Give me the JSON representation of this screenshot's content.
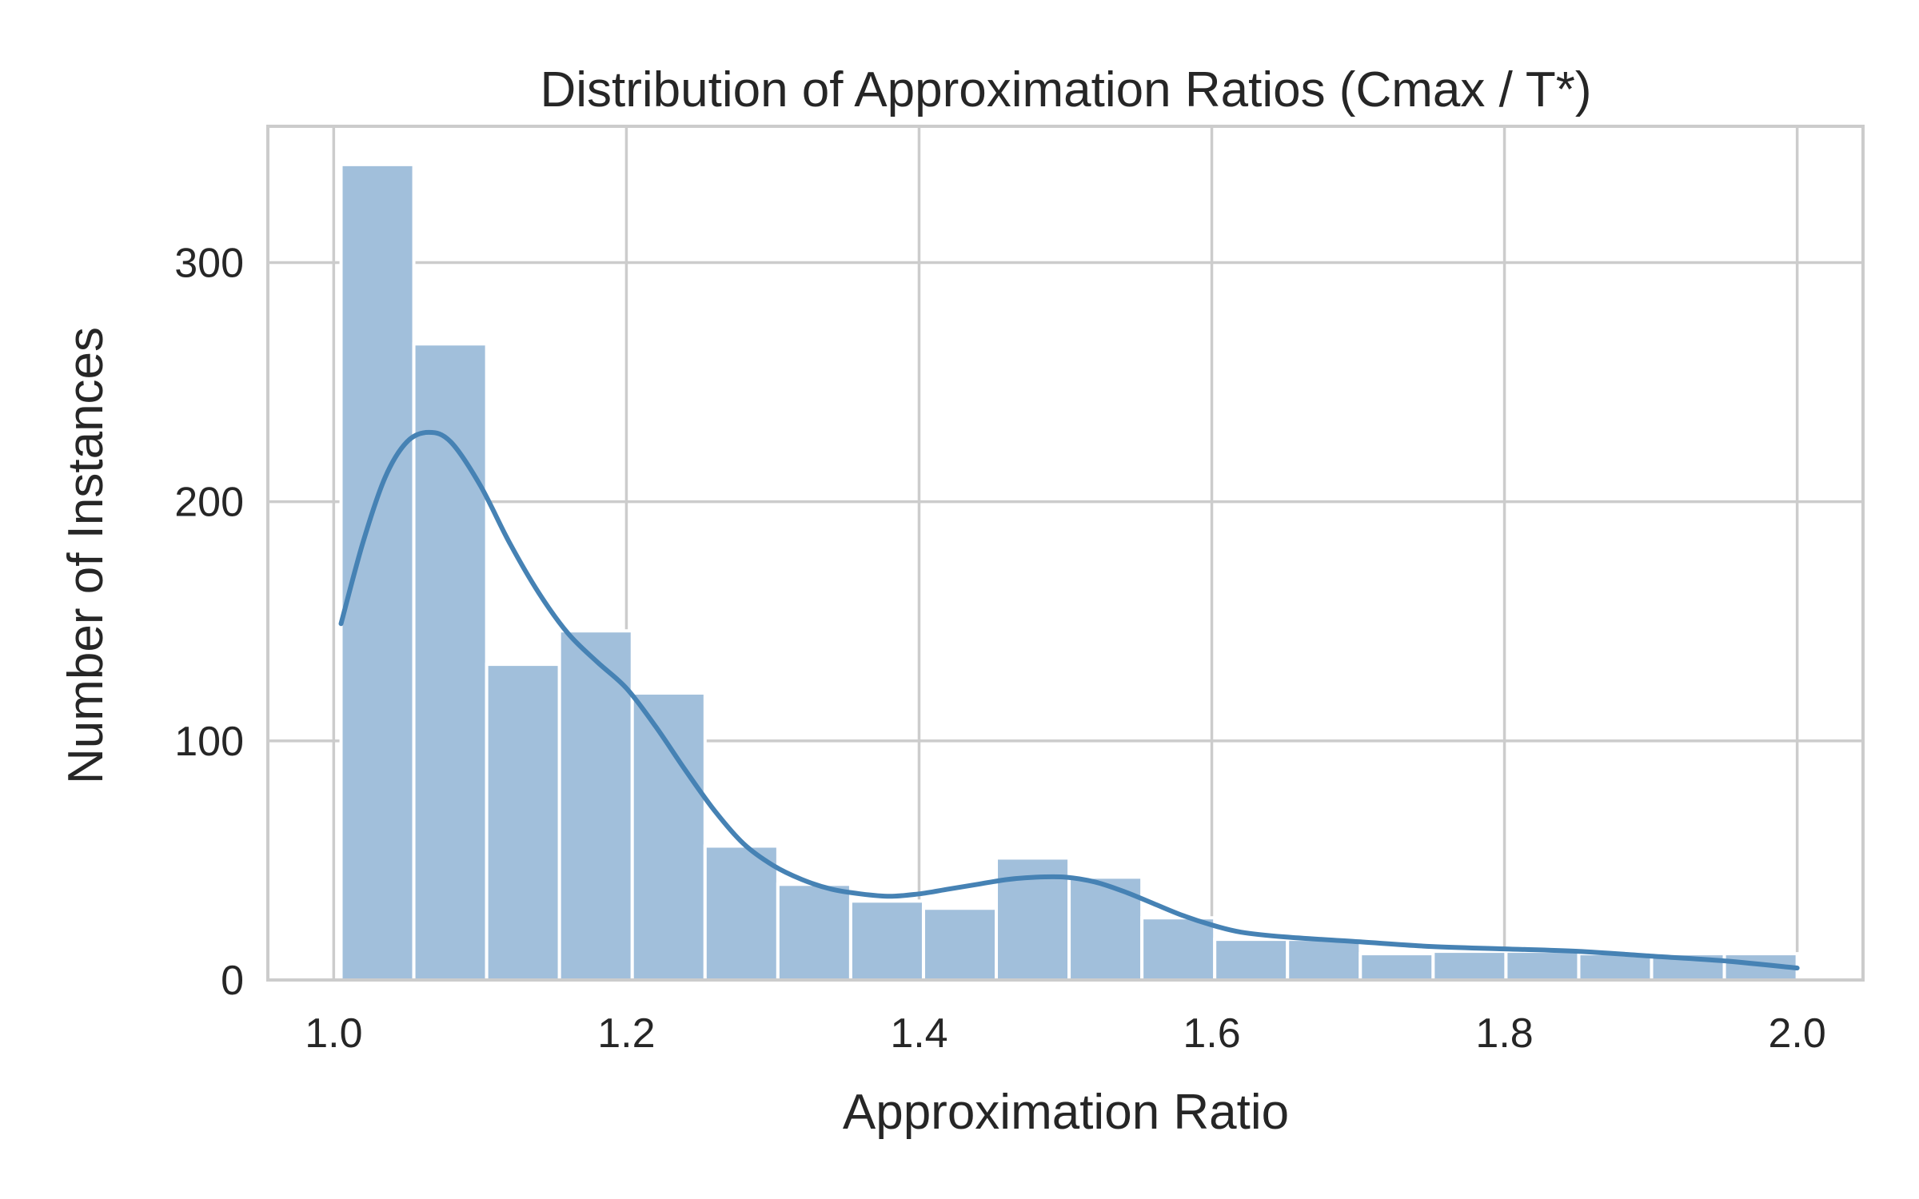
{
  "chart_data": {
    "type": "bar",
    "title": "Distribution of Approximation Ratios (Cmax / T*)",
    "xlabel": "Approximation Ratio",
    "ylabel": "Number of Instances",
    "xlim": [
      0.955,
      2.045
    ],
    "ylim": [
      0,
      357
    ],
    "xticks": [
      1.0,
      1.2,
      1.4,
      1.6,
      1.8,
      2.0
    ],
    "xtick_labels": [
      "1.0",
      "1.2",
      "1.4",
      "1.6",
      "1.8",
      "2.0"
    ],
    "yticks": [
      0,
      100,
      200,
      300
    ],
    "ytick_labels": [
      "0",
      "100",
      "200",
      "300"
    ],
    "grid": true,
    "legend": "none",
    "colors": {
      "bar_fill": "#a1bfdb",
      "bar_edge": "#ffffff",
      "kde_line": "#4682b4",
      "grid": "#cccccc",
      "spine": "#cccccc",
      "text": "#262626"
    },
    "bins": {
      "start": 1.005,
      "width": 0.04975
    },
    "values": [
      341,
      266,
      132,
      146,
      120,
      56,
      40,
      33,
      30,
      51,
      43,
      26,
      17,
      17,
      11,
      12,
      12,
      11,
      11,
      11
    ],
    "kde": {
      "x": [
        1.005,
        1.02,
        1.035,
        1.05,
        1.065,
        1.08,
        1.1,
        1.12,
        1.14,
        1.16,
        1.18,
        1.2,
        1.22,
        1.24,
        1.26,
        1.28,
        1.3,
        1.32,
        1.34,
        1.36,
        1.38,
        1.4,
        1.42,
        1.44,
        1.46,
        1.48,
        1.5,
        1.52,
        1.54,
        1.56,
        1.58,
        1.6,
        1.62,
        1.65,
        1.7,
        1.75,
        1.8,
        1.85,
        1.9,
        1.95,
        2.0
      ],
      "y": [
        149,
        183,
        210,
        225,
        229,
        225,
        207,
        183,
        162,
        145,
        133,
        122,
        106,
        88,
        71,
        57,
        48,
        42,
        38,
        36,
        35,
        36,
        38,
        40,
        42,
        43,
        43,
        41,
        37,
        32,
        27,
        23,
        20,
        18,
        16,
        14,
        13,
        12,
        10,
        8,
        5
      ]
    }
  }
}
